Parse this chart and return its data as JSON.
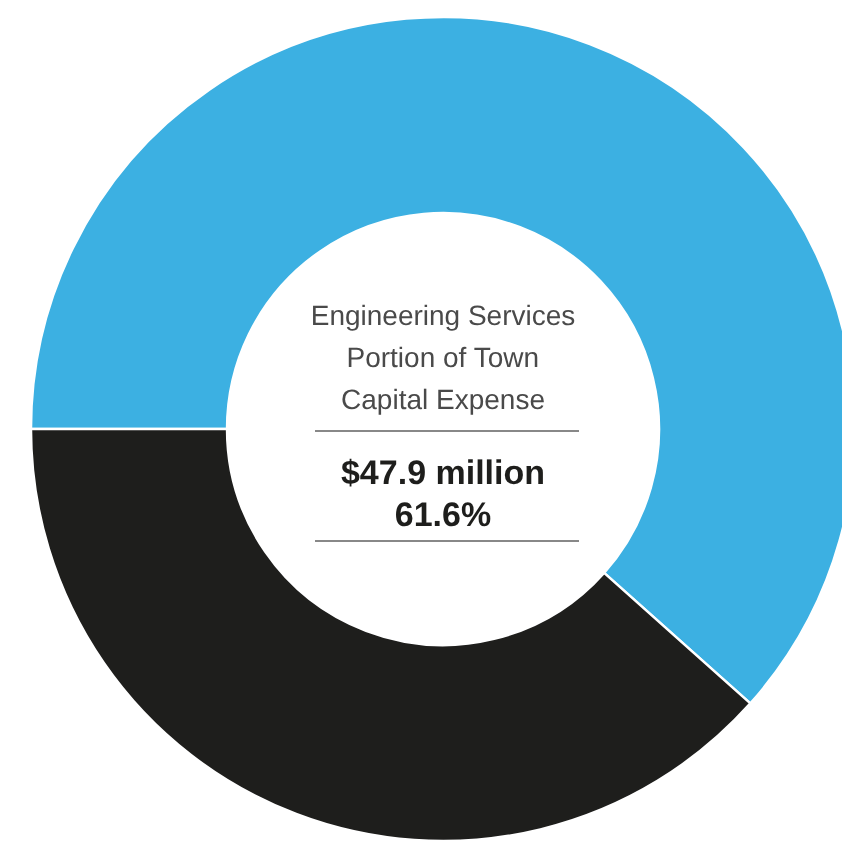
{
  "chart_data": {
    "type": "donut",
    "categories": [
      null,
      null
    ],
    "values": [
      61.6,
      38.4
    ],
    "colors": [
      "#3cb0e2",
      "#1e1e1c"
    ],
    "annotations": [
      "Engineering Services",
      "Portion of Town",
      "Capital Expense",
      "$47.9 million",
      "61.6%"
    ]
  }
}
